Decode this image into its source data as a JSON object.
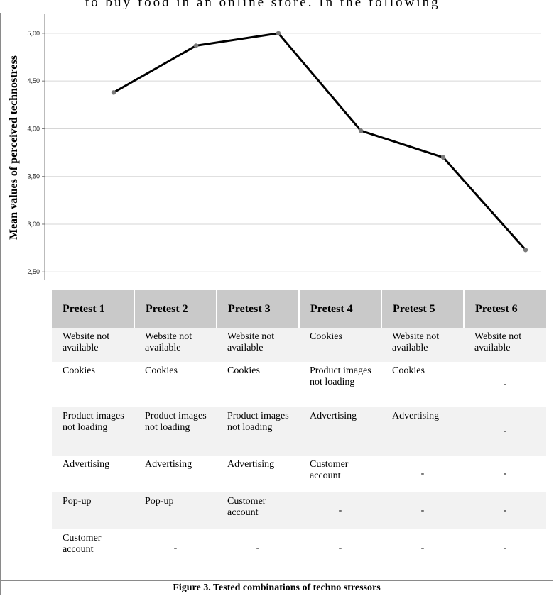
{
  "top_text": "to buy food in an online store. In the following",
  "caption": "Figure 3. Tested combinations of techno stressors",
  "chart_data": {
    "type": "line",
    "ylabel": "Mean values of perceived technostress",
    "xlabel": "",
    "categories": [
      "Pretest 1",
      "Pretest 2",
      "Pretest 3",
      "Pretest 4",
      "Pretest 5",
      "Pretest 6"
    ],
    "values": [
      4.38,
      4.87,
      5.0,
      3.98,
      3.7,
      2.73
    ],
    "ylim": [
      2.42,
      5.2
    ],
    "yticks": [
      "5,00",
      "4,50",
      "4,00",
      "3,50",
      "3,00",
      "2,50"
    ],
    "ytick_values": [
      5.0,
      4.5,
      4.0,
      3.5,
      3.0,
      2.5
    ],
    "grid": true,
    "line_color": "#000000",
    "marker_color": "#7a7a7a",
    "grid_color": "#d6d6d6"
  },
  "table": {
    "headers": [
      "Pretest 1",
      "Pretest 2",
      "Pretest 3",
      "Pretest 4",
      "Pretest 5",
      "Pretest 6"
    ],
    "rows": [
      [
        "Website not available",
        "Website not available",
        "Website not available",
        "Cookies",
        "Website not available",
        "Website not available"
      ],
      [
        "Cookies",
        "Cookies",
        "Cookies",
        "Product images not loading",
        "Cookies",
        "-"
      ],
      [
        "Product images not loading",
        "Product images not loading",
        "Product images not loading",
        "Advertising",
        "Advertising",
        "-"
      ],
      [
        "Advertising",
        "Advertising",
        "Advertising",
        "Customer account",
        "-",
        "-"
      ],
      [
        "Pop-up",
        "Pop-up",
        "Customer account",
        "-",
        "-",
        "-"
      ],
      [
        "Customer account",
        "-",
        "-",
        "-",
        "-",
        "-"
      ]
    ]
  }
}
